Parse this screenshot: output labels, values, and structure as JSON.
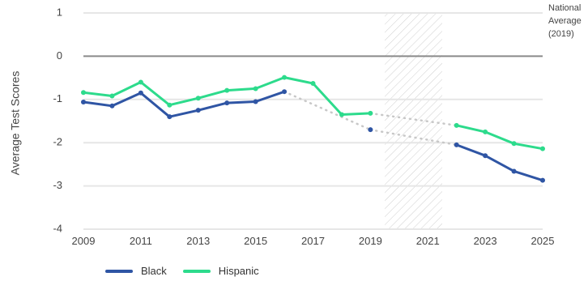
{
  "chart_data": {
    "type": "line",
    "ylabel": "Average Test Scores",
    "xlim": [
      2009,
      2025
    ],
    "ylim": [
      -4,
      1
    ],
    "x_ticks": [
      "2009",
      "2011",
      "2013",
      "2015",
      "2017",
      "2019",
      "2021",
      "2023",
      "2025"
    ],
    "y_ticks": [
      "1",
      "0",
      "-1",
      "-2",
      "-3",
      "-4"
    ],
    "reference_line": {
      "y": 0,
      "label_lines": [
        "National",
        "Average",
        "(2019)"
      ]
    },
    "shaded_range": {
      "x": [
        2019.5,
        2021.5
      ],
      "pattern": "diagonal-hatch"
    },
    "series": [
      {
        "name": "Black",
        "color": "#2f55a4",
        "points": [
          [
            2009,
            -1.06
          ],
          [
            2010,
            -1.15
          ],
          [
            2011,
            -0.85
          ],
          [
            2012,
            -1.4
          ],
          [
            2013,
            -1.25
          ],
          [
            2014,
            -1.08
          ],
          [
            2015,
            -1.05
          ],
          [
            2016,
            -0.82
          ]
        ],
        "projected_points": [
          [
            2019,
            -1.7
          ]
        ],
        "recovery_points": [
          [
            2022,
            -2.05
          ],
          [
            2023,
            -2.3
          ],
          [
            2024,
            -2.66
          ],
          [
            2025,
            -2.87
          ]
        ]
      },
      {
        "name": "Hispanic",
        "color": "#2ddb8c",
        "points": [
          [
            2009,
            -0.84
          ],
          [
            2010,
            -0.92
          ],
          [
            2011,
            -0.6
          ],
          [
            2012,
            -1.13
          ],
          [
            2013,
            -0.97
          ],
          [
            2014,
            -0.79
          ],
          [
            2015,
            -0.75
          ],
          [
            2016,
            -0.49
          ],
          [
            2017,
            -0.63
          ],
          [
            2018,
            -1.35
          ],
          [
            2019,
            -1.32
          ]
        ],
        "projected_points": [],
        "recovery_points": [
          [
            2022,
            -1.6
          ],
          [
            2023,
            -1.75
          ],
          [
            2024,
            -2.02
          ],
          [
            2025,
            -2.14
          ]
        ]
      }
    ],
    "dotted_connectors": [
      {
        "from": [
          2016,
          -0.82
        ],
        "to": [
          2019,
          -1.7
        ],
        "color": "#c8c8c8"
      },
      {
        "from": [
          2019,
          -1.32
        ],
        "to": [
          2022,
          -1.6
        ],
        "color": "#c8c8c8"
      },
      {
        "from": [
          2019,
          -1.7
        ],
        "to": [
          2022,
          -2.05
        ],
        "color": "#c8c8c8"
      }
    ],
    "grid": {
      "horizontal": true,
      "color": "#e6e6e6"
    },
    "legend": {
      "placement": "bottom-left"
    }
  }
}
